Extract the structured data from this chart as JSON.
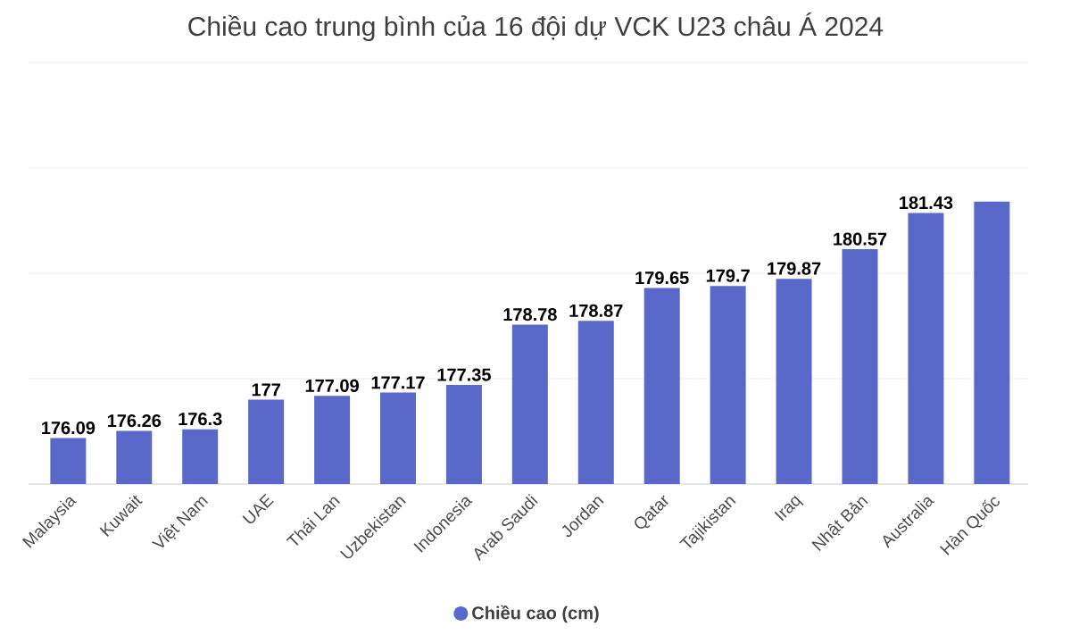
{
  "chart_data": {
    "type": "bar",
    "title": "Chiều cao trung bình của 16 đội dự VCK U23 châu Á 2024",
    "categories": [
      "Malaysia",
      "Kuwait",
      "Việt Nam",
      "UAE",
      "Thái Lan",
      "Uzbekistan",
      "Indonesia",
      "Arab Saudi",
      "Jordan",
      "Qatar",
      "Tajikistan",
      "Iraq",
      "Nhật Bản",
      "Australia",
      "Hàn Quốc"
    ],
    "series": [
      {
        "name": "Chiều cao (cm)",
        "color": "#5a68c9",
        "values": [
          176.09,
          176.26,
          176.3,
          177,
          177.09,
          177.17,
          177.35,
          178.78,
          178.87,
          179.65,
          179.7,
          179.87,
          180.57,
          181.43,
          181.7
        ],
        "value_labels": [
          "176.09",
          "176.26",
          "176.3",
          "177",
          "177.09",
          "177.17",
          "177.35",
          "178.78",
          "178.87",
          "179.65",
          "179.7",
          "179.87",
          "180.57",
          "181.43",
          null
        ]
      }
    ],
    "ylim": [
      175,
      185
    ],
    "yticks": [
      {
        "value": 175,
        "label": null
      },
      {
        "value": 177.5,
        "label": null
      },
      {
        "value": 180,
        "label": null
      },
      {
        "value": 182.5,
        "label": null
      },
      {
        "value": 185,
        "label": null
      }
    ],
    "tick_labels": "x",
    "grid": "y",
    "legend": "bottom"
  }
}
